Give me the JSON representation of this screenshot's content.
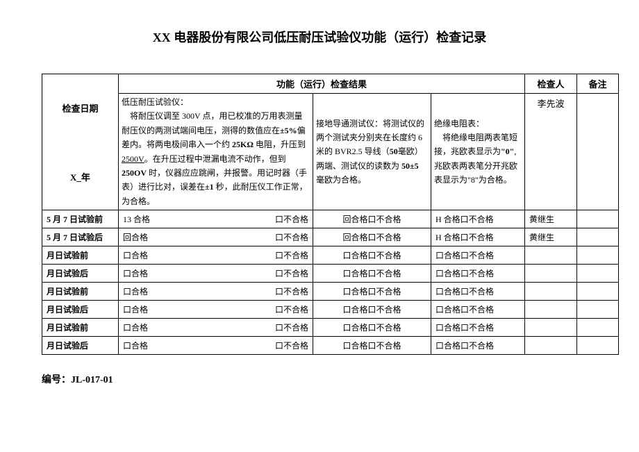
{
  "title": "XX 电器股份有限公司低压耐压试验仪功能（运行）检查记录",
  "header": {
    "date_col": "检查日期",
    "result_col": "功能（运行）检查结果",
    "inspector_col": "检查人",
    "remark_col": "备注",
    "year_label": "X_年"
  },
  "descriptions": {
    "col1": "低压耐压试验仪：\n　将耐压仪调至 300V 点，用已校准的万用表测量耐压仪的两测试端间电压，测得的数值应在±5%偏差内。将两电极间串入一个约 25KΩ 电阻，升压到 2500V。在升压过程中泄漏电流不动作，但到 250OV 时，仪器应应跳闸，并报警。用记时器（手表）进行比对，误差在±1 秒，此耐压仪工作正常，为合格。",
    "col2": "接地导通测试仪：将测试仪的两个测试夹分别夹在长度约 6 米的 BVR2.5 导线（50毫欧）两端、测试仪的读数为 50±5 毫欧为合格。",
    "col3": "绝缘电阻表：\n　将绝缘电阻两表笔短接，兆欧表显示为\"0\",兆欧表两表笔分开兆欧表显示为\"8\"为合格。",
    "inspector_top": "李先波"
  },
  "rows": [
    {
      "date": "5 月 7 日试验前",
      "c1a": "13 合格",
      "c1b": "口不合格",
      "c2": "回合格口不合格",
      "c3": "H 合格口不合格",
      "inspector": "黄继生"
    },
    {
      "date": "5 月 7 日试验后",
      "c1a": "回合格",
      "c1b": "口不合格",
      "c2": "回合格口不合格",
      "c3": "H 合格口不合格",
      "inspector": "黄继生"
    },
    {
      "date": "月日试验前",
      "c1a": "口合格",
      "c1b": "口不合格",
      "c2": "口合格口不合格",
      "c3": "口合格口不合格",
      "inspector": ""
    },
    {
      "date": "月日试验后",
      "c1a": "口合格",
      "c1b": "口不合格",
      "c2": "口合格口不合格",
      "c3": "口合格口不合格",
      "inspector": ""
    },
    {
      "date": "月日试验前",
      "c1a": "口合格",
      "c1b": "口不合格",
      "c2": "口合格口不合格",
      "c3": "口合格口不合格",
      "inspector": ""
    },
    {
      "date": "月日试验后",
      "c1a": "口合格",
      "c1b": "口不合格",
      "c2": "口合格口不合格",
      "c3": "口合格口不合格",
      "inspector": ""
    },
    {
      "date": "月日试验前",
      "c1a": "口合格",
      "c1b": "口不合格",
      "c2": "口合格口不合格",
      "c3": "口合格口不合格",
      "inspector": ""
    },
    {
      "date": "月日试验后",
      "c1a": "口合格",
      "c1b": "口不合格",
      "c2": "口合格口不合格",
      "c3": "口合格口不合格",
      "inspector": ""
    }
  ],
  "footer": "编号：JL-017-01"
}
